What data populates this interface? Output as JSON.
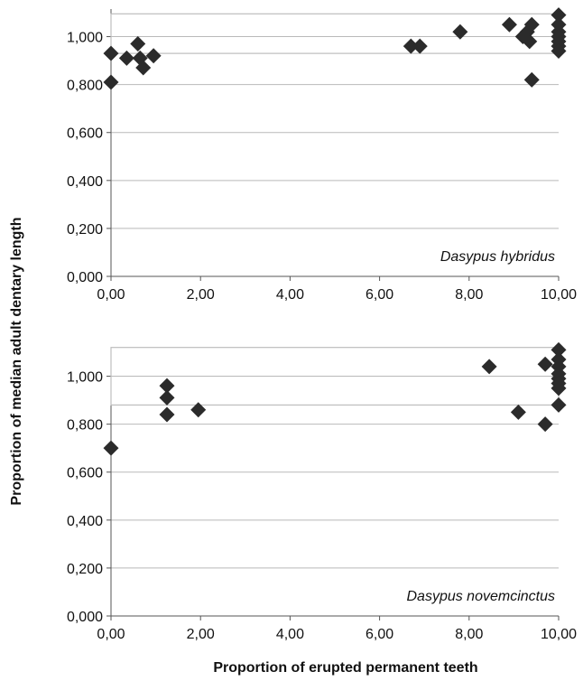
{
  "ylabel": "Proportion of median adult dentary length",
  "xlabel": "Proportion of erupted permanent teeth",
  "colors": {
    "marker": "#2b2b2b",
    "grid": "#b9b9b9",
    "box": "#bdbdbd",
    "axis": "#555555",
    "text": "#111111"
  },
  "chart_data": [
    {
      "type": "scatter",
      "title": "",
      "label": "Dasypus hybridus",
      "marker": "diamond",
      "xlim": [
        0,
        10
      ],
      "ylim": [
        0,
        1.1
      ],
      "x_ticks": [
        "0,00",
        "2,00",
        "4,00",
        "6,00",
        "8,00",
        "10,00"
      ],
      "y_ticks": [
        "0,000",
        "0,200",
        "0,400",
        "0,600",
        "0,800",
        "1,000"
      ],
      "grid": "horizontal",
      "box": {
        "x0": 0,
        "x1": 10,
        "y0": 0.93,
        "y1": 1.095,
        "median": 1.0
      },
      "points": [
        {
          "x": 0.0,
          "y": 0.93
        },
        {
          "x": 0.0,
          "y": 0.81
        },
        {
          "x": 0.35,
          "y": 0.91
        },
        {
          "x": 0.6,
          "y": 0.97
        },
        {
          "x": 0.65,
          "y": 0.91
        },
        {
          "x": 0.72,
          "y": 0.87
        },
        {
          "x": 0.95,
          "y": 0.92
        },
        {
          "x": 6.7,
          "y": 0.96
        },
        {
          "x": 6.9,
          "y": 0.96
        },
        {
          "x": 7.8,
          "y": 1.02
        },
        {
          "x": 8.9,
          "y": 1.05
        },
        {
          "x": 9.2,
          "y": 1.0
        },
        {
          "x": 9.3,
          "y": 1.02
        },
        {
          "x": 9.35,
          "y": 0.98
        },
        {
          "x": 9.4,
          "y": 1.05
        },
        {
          "x": 9.4,
          "y": 0.82
        },
        {
          "x": 10.0,
          "y": 1.09
        },
        {
          "x": 10.0,
          "y": 1.05
        },
        {
          "x": 10.0,
          "y": 1.02
        },
        {
          "x": 10.0,
          "y": 1.0
        },
        {
          "x": 10.0,
          "y": 0.98
        },
        {
          "x": 10.0,
          "y": 0.96
        },
        {
          "x": 10.0,
          "y": 0.94
        }
      ]
    },
    {
      "type": "scatter",
      "title": "",
      "label": "Dasypus novemcinctus",
      "marker": "diamond",
      "xlim": [
        0,
        10
      ],
      "ylim": [
        0,
        1.1
      ],
      "x_ticks": [
        "0,00",
        "2,00",
        "4,00",
        "6,00",
        "8,00",
        "10,00"
      ],
      "y_ticks": [
        "0,000",
        "0,200",
        "0,400",
        "0,600",
        "0,800",
        "1,000"
      ],
      "grid": "horizontal",
      "box": {
        "x0": 0,
        "x1": 10,
        "y0": 0.88,
        "y1": 1.12,
        "median": 1.0
      },
      "points": [
        {
          "x": 0.0,
          "y": 0.7
        },
        {
          "x": 1.25,
          "y": 0.96
        },
        {
          "x": 1.25,
          "y": 0.91
        },
        {
          "x": 1.25,
          "y": 0.84
        },
        {
          "x": 1.95,
          "y": 0.86
        },
        {
          "x": 8.45,
          "y": 1.04
        },
        {
          "x": 9.1,
          "y": 0.85
        },
        {
          "x": 9.7,
          "y": 1.05
        },
        {
          "x": 9.7,
          "y": 0.8
        },
        {
          "x": 10.0,
          "y": 1.11
        },
        {
          "x": 10.0,
          "y": 1.07
        },
        {
          "x": 10.0,
          "y": 1.04
        },
        {
          "x": 10.0,
          "y": 1.01
        },
        {
          "x": 10.0,
          "y": 0.99
        },
        {
          "x": 10.0,
          "y": 0.97
        },
        {
          "x": 10.0,
          "y": 0.95
        },
        {
          "x": 10.0,
          "y": 0.88
        }
      ]
    }
  ]
}
